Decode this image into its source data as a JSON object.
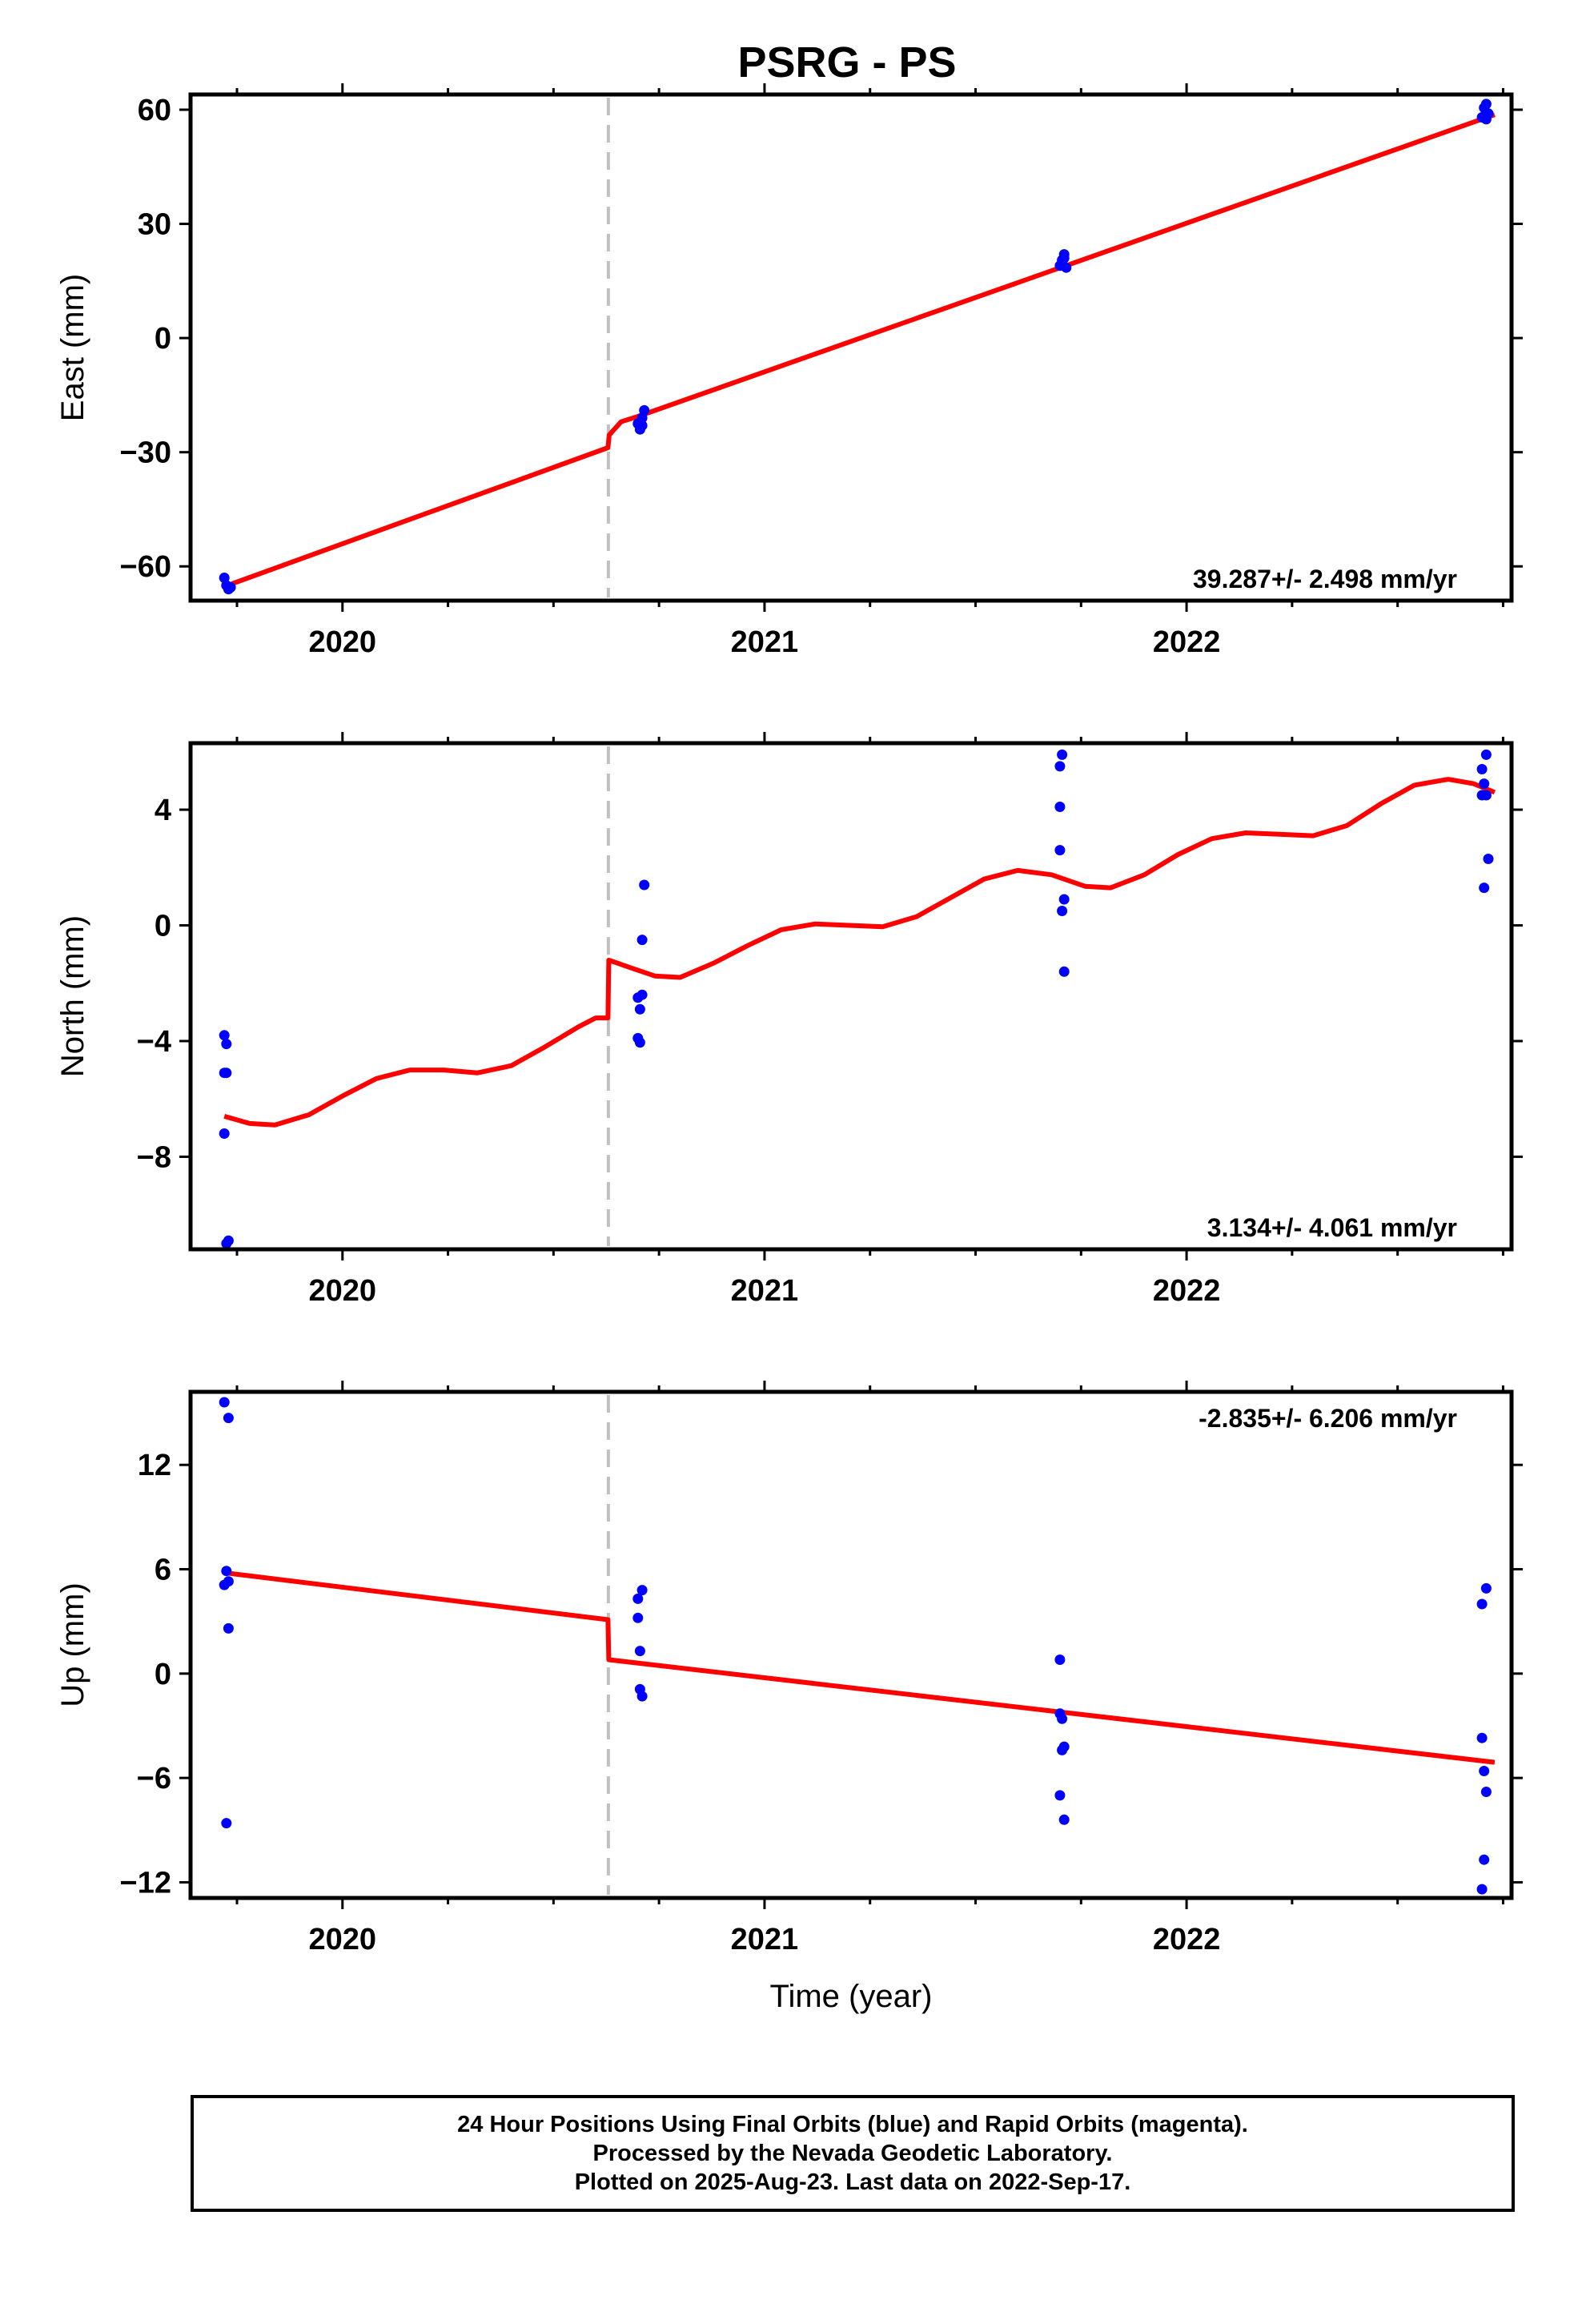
{
  "title": "PSRG - PS",
  "footer": {
    "line1": "24 Hour Positions Using Final Orbits (blue) and Rapid Orbits (magenta).",
    "line2": "Processed by the Nevada Geodetic Laboratory.",
    "line3": "Plotted on 2025-Aug-23. Last data on 2022-Sep-17."
  },
  "colors": {
    "points": "#0000ff",
    "model": "#ff0000",
    "offset_line": "#c0c0c0",
    "axes": "#000000"
  },
  "chart_data": [
    {
      "type": "scatter",
      "ylabel": "East (mm)",
      "xlabel": "",
      "xlim": [
        2019.64,
        2022.77
      ],
      "ylim": [
        -69,
        64
      ],
      "yticks": [
        -60,
        -30,
        0,
        30,
        60
      ],
      "xticks": [
        2020,
        2021,
        2022
      ],
      "xtick_labels": [
        "2020",
        "2021",
        "2022"
      ],
      "rate_label": "39.287+/- 2.498 mm/yr",
      "rate_position": "bottom-right",
      "offset_epoch": 2020.63,
      "points": [
        [
          2019.72,
          -63
        ],
        [
          2019.725,
          -65
        ],
        [
          2019.73,
          -66
        ],
        [
          2019.735,
          -65.5
        ],
        [
          2020.7,
          -22.5
        ],
        [
          2020.705,
          -24
        ],
        [
          2020.71,
          -21
        ],
        [
          2020.715,
          -19
        ],
        [
          2020.71,
          -23
        ],
        [
          2021.7,
          19
        ],
        [
          2021.705,
          20.5
        ],
        [
          2021.71,
          22
        ],
        [
          2021.715,
          18.5
        ],
        [
          2021.71,
          21
        ],
        [
          2022.7,
          58
        ],
        [
          2022.705,
          60.5
        ],
        [
          2022.71,
          61.5
        ],
        [
          2022.715,
          59
        ],
        [
          2022.71,
          57.5
        ]
      ],
      "model": [
        [
          2019.72,
          -65.3
        ],
        [
          2020.629,
          -28.8
        ],
        [
          2020.632,
          -25.5
        ],
        [
          2020.66,
          -22
        ],
        [
          2020.7,
          -20.6
        ],
        [
          2022.73,
          58.7
        ]
      ]
    },
    {
      "type": "scatter",
      "ylabel": "North (mm)",
      "xlabel": "",
      "xlim": [
        2019.64,
        2022.77
      ],
      "ylim": [
        -11.2,
        6.3
      ],
      "yticks": [
        -8,
        -4,
        0,
        4
      ],
      "xticks": [
        2020,
        2021,
        2022
      ],
      "xtick_labels": [
        "2020",
        "2021",
        "2022"
      ],
      "rate_label": "3.134+/- 4.061 mm/yr",
      "rate_position": "bottom-right",
      "offset_epoch": 2020.63,
      "points": [
        [
          2019.72,
          -3.8
        ],
        [
          2019.725,
          -4.1
        ],
        [
          2019.72,
          -5.1
        ],
        [
          2019.725,
          -5.1
        ],
        [
          2019.72,
          -7.2
        ],
        [
          2019.73,
          -10.9
        ],
        [
          2019.725,
          -11.0
        ],
        [
          2020.7,
          -2.5
        ],
        [
          2020.705,
          -2.9
        ],
        [
          2020.71,
          -2.4
        ],
        [
          2020.7,
          -3.9
        ],
        [
          2020.705,
          -4.05
        ],
        [
          2020.71,
          -0.5
        ],
        [
          2020.715,
          1.4
        ],
        [
          2021.7,
          5.5
        ],
        [
          2021.705,
          5.9
        ],
        [
          2021.7,
          4.1
        ],
        [
          2021.7,
          2.6
        ],
        [
          2021.71,
          0.9
        ],
        [
          2021.705,
          0.5
        ],
        [
          2021.71,
          -1.6
        ],
        [
          2022.7,
          5.4
        ],
        [
          2022.71,
          5.9
        ],
        [
          2022.705,
          4.9
        ],
        [
          2022.7,
          4.5
        ],
        [
          2022.71,
          4.5
        ],
        [
          2022.715,
          2.3
        ],
        [
          2022.705,
          1.3
        ]
      ],
      "model": {
        "epoch_start": 2019.72,
        "epoch_end": 2022.73,
        "offset_epoch": 2020.63,
        "offset_jump": 2.0,
        "segments": [
          [
            [
              2019.72,
              -6.6
            ],
            [
              2019.78,
              -6.85
            ],
            [
              2019.84,
              -6.9
            ],
            [
              2019.92,
              -6.55
            ],
            [
              2020.0,
              -5.9
            ],
            [
              2020.08,
              -5.3
            ],
            [
              2020.16,
              -5.0
            ],
            [
              2020.24,
              -5.0
            ],
            [
              2020.32,
              -5.1
            ],
            [
              2020.4,
              -4.85
            ],
            [
              2020.48,
              -4.2
            ],
            [
              2020.56,
              -3.5
            ],
            [
              2020.6,
              -3.2
            ],
            [
              2020.629,
              -3.2
            ]
          ],
          [
            [
              2020.631,
              -1.2
            ],
            [
              2020.68,
              -1.45
            ],
            [
              2020.74,
              -1.75
            ],
            [
              2020.8,
              -1.8
            ],
            [
              2020.88,
              -1.3
            ],
            [
              2020.96,
              -0.7
            ],
            [
              2021.04,
              -0.15
            ],
            [
              2021.12,
              0.05
            ],
            [
              2021.2,
              0.0
            ],
            [
              2021.28,
              -0.05
            ],
            [
              2021.36,
              0.3
            ],
            [
              2021.44,
              0.95
            ],
            [
              2021.52,
              1.6
            ],
            [
              2021.6,
              1.9
            ],
            [
              2021.68,
              1.75
            ],
            [
              2021.76,
              1.35
            ],
            [
              2021.82,
              1.3
            ],
            [
              2021.9,
              1.75
            ],
            [
              2021.98,
              2.45
            ],
            [
              2022.06,
              3.0
            ],
            [
              2022.14,
              3.2
            ],
            [
              2022.22,
              3.15
            ],
            [
              2022.3,
              3.1
            ],
            [
              2022.38,
              3.45
            ],
            [
              2022.46,
              4.2
            ],
            [
              2022.54,
              4.85
            ],
            [
              2022.62,
              5.05
            ],
            [
              2022.68,
              4.9
            ],
            [
              2022.73,
              4.6
            ]
          ]
        ]
      }
    },
    {
      "type": "scatter",
      "ylabel": "Up (mm)",
      "xlabel": "Time (year)",
      "xlim": [
        2019.64,
        2022.77
      ],
      "ylim": [
        -12.9,
        16.2
      ],
      "yticks": [
        -12,
        -6,
        0,
        6,
        12
      ],
      "xticks": [
        2020,
        2021,
        2022
      ],
      "xtick_labels": [
        "2020",
        "2021",
        "2022"
      ],
      "rate_label": "-2.835+/- 6.206 mm/yr",
      "rate_position": "top-right",
      "offset_epoch": 2020.63,
      "points": [
        [
          2019.72,
          15.6
        ],
        [
          2019.73,
          14.7
        ],
        [
          2019.725,
          5.9
        ],
        [
          2019.72,
          5.1
        ],
        [
          2019.73,
          5.3
        ],
        [
          2019.73,
          2.6
        ],
        [
          2019.725,
          -8.6
        ],
        [
          2020.7,
          4.3
        ],
        [
          2020.71,
          4.8
        ],
        [
          2020.7,
          3.2
        ],
        [
          2020.705,
          1.3
        ],
        [
          2020.705,
          -0.9
        ],
        [
          2020.71,
          -1.3
        ],
        [
          2021.7,
          0.8
        ],
        [
          2021.7,
          -2.3
        ],
        [
          2021.705,
          -2.6
        ],
        [
          2021.71,
          -4.2
        ],
        [
          2021.705,
          -4.4
        ],
        [
          2021.7,
          -7.0
        ],
        [
          2021.71,
          -8.4
        ],
        [
          2022.7,
          4.0
        ],
        [
          2022.71,
          4.9
        ],
        [
          2022.7,
          -3.7
        ],
        [
          2022.705,
          -5.6
        ],
        [
          2022.71,
          -6.8
        ],
        [
          2022.705,
          -10.7
        ],
        [
          2022.7,
          -12.4
        ]
      ],
      "model": [
        [
          2019.72,
          5.8
        ],
        [
          2020.629,
          3.1
        ],
        [
          2020.631,
          0.8
        ],
        [
          2022.73,
          -5.1
        ]
      ]
    }
  ]
}
